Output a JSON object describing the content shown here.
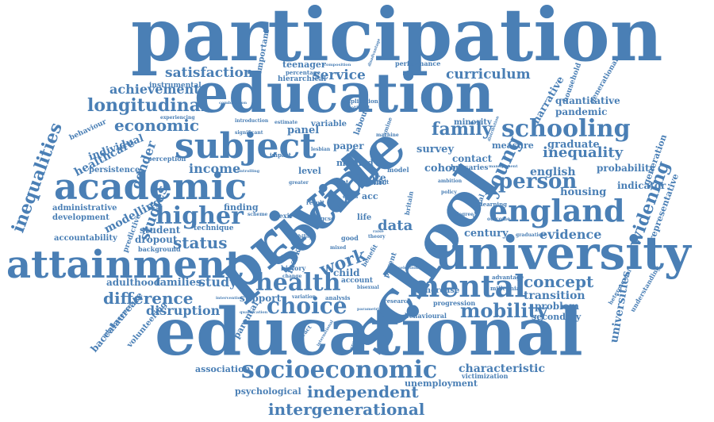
{
  "color": "#4a7fb5",
  "words": {
    "participation": "participation",
    "education": "education",
    "educational": "educational",
    "private": "private",
    "school": "school",
    "social": "social",
    "university": "university",
    "attainment": "attainment",
    "academic": "academic",
    "subject": "subject",
    "england": "england",
    "schooling": "schooling",
    "higher": "higher",
    "mental": "mental",
    "health": "health",
    "socioeconomic": "socioeconomic",
    "choice": "choice",
    "mobility": "mobility",
    "concept": "concept",
    "difference": "difference",
    "family": "family",
    "person": "person",
    "inequalities": "inequalities",
    "longitudinal": "longitudinal",
    "economic": "economic",
    "achievement": "achievement",
    "satisfaction": "satisfaction",
    "service": "service",
    "curriculum": "curriculum",
    "income": "income",
    "status": "status",
    "work": "work",
    "independent": "independent",
    "intergenerational": "intergenerational",
    "young": "young",
    "inequality": "inequality",
    "widening": "widening",
    "evidence": "evidence",
    "transition": "transition",
    "characteristic": "characteristic",
    "disruption": "disruption",
    "study": "study",
    "families": "families",
    "adulthood": "adulthood",
    "data": "data",
    "gender": "gender",
    "studies": "studies",
    "modelling": "modelling",
    "healthcare": "healthcare",
    "individual": "individual",
    "english": "english",
    "graduate": "graduate",
    "housing": "housing",
    "century": "century",
    "contact": "contact",
    "cohort": "cohort",
    "survey": "survey",
    "narrative": "narrative",
    "pandemic": "pandemic",
    "quantitative": "quantitative",
    "probability": "probability",
    "indicator": "indicator",
    "generation": "generation",
    "representative": "representative",
    "universities": "universities",
    "problem": "problem",
    "secondary": "secondary",
    "unemployment": "unemployment",
    "psychological": "psychological",
    "association": "association",
    "baccalaureate": "baccalaureate",
    "volunteering": "volunteering",
    "parental": "parental",
    "support": "support",
    "dropout": "dropout",
    "student": "student",
    "accountability": "accountability",
    "administrative": "administrative",
    "development": "development",
    "persistence": "persistence",
    "behaviour": "behaviour",
    "instrumental": "instrumental",
    "teenager": "teenager",
    "hierarchical": "hierarchical",
    "percentage": "percentage",
    "important": "important",
    "panel": "panel",
    "variable": "variable",
    "paper": "paper",
    "minority": "minority",
    "measure": "measure",
    "method": "method",
    "level": "level",
    "more": "more",
    "acc": "acc",
    "child": "child",
    "increase": "increase",
    "progression": "progression",
    "behavioural": "behavioural",
    "account": "account",
    "finding": "finding",
    "technique": "technique",
    "market": "market",
    "labour": "labour",
    "ethnic": "ethnic",
    "bursaries": "bursaries",
    "generational": "generational",
    "household": "household",
    "performance": "performance",
    "perception": "perception",
    "predictive": "predictive",
    "background": "background",
    "history": "history",
    "brexit": "brexit",
    "advantage": "advantage",
    "victimization": "victimization",
    "understanding": "understanding",
    "heterosexual": "heterosexual",
    "adolescence": "adolescence",
    "contract": "contract",
    "parent": "parent",
    "research": "research",
    "analysis": "analysis",
    "sexual": "sexual",
    "benefit": "benefit",
    "good": "good",
    "model": "model",
    "adult": "adult",
    "britain": "britain",
    "recent": "recent",
    "millennial": "millennial",
    "learning": "learning",
    "graduation": "graduation",
    "implication": "implication",
    "emotional": "emotional",
    "introduction": "introduction",
    "experiencing": "experiencing",
    "significant": "significant",
    "estimate": "estimate",
    "lesbian": "lesbian",
    "greater": "greater",
    "result": "result",
    "life": "life",
    "class": "class",
    "gcse": "gcse",
    "composition": "composition",
    "disadvantage": "disadvantage",
    "distribution": "distribution",
    "management": "management",
    "controlling": "controlling",
    "impact": "impact",
    "variation": "variation",
    "qualification": "qualification",
    "bisexual": "bisexual",
    "parametric": "parametric",
    "international": "international",
    "experience": "experience",
    "intervention": "intervention",
    "combination": "combination",
    "examine": "examine",
    "machine": "machine",
    "income2": "income",
    "ability": "ability",
    "scheme": "scheme",
    "change": "change",
    "mixed": "mixed",
    "theory": "theory",
    "raise": "raise",
    "selection": "selection",
    "ambition": "ambition",
    "policy": "policy",
    "degree": "degree",
    "outcome": "outcome"
  }
}
